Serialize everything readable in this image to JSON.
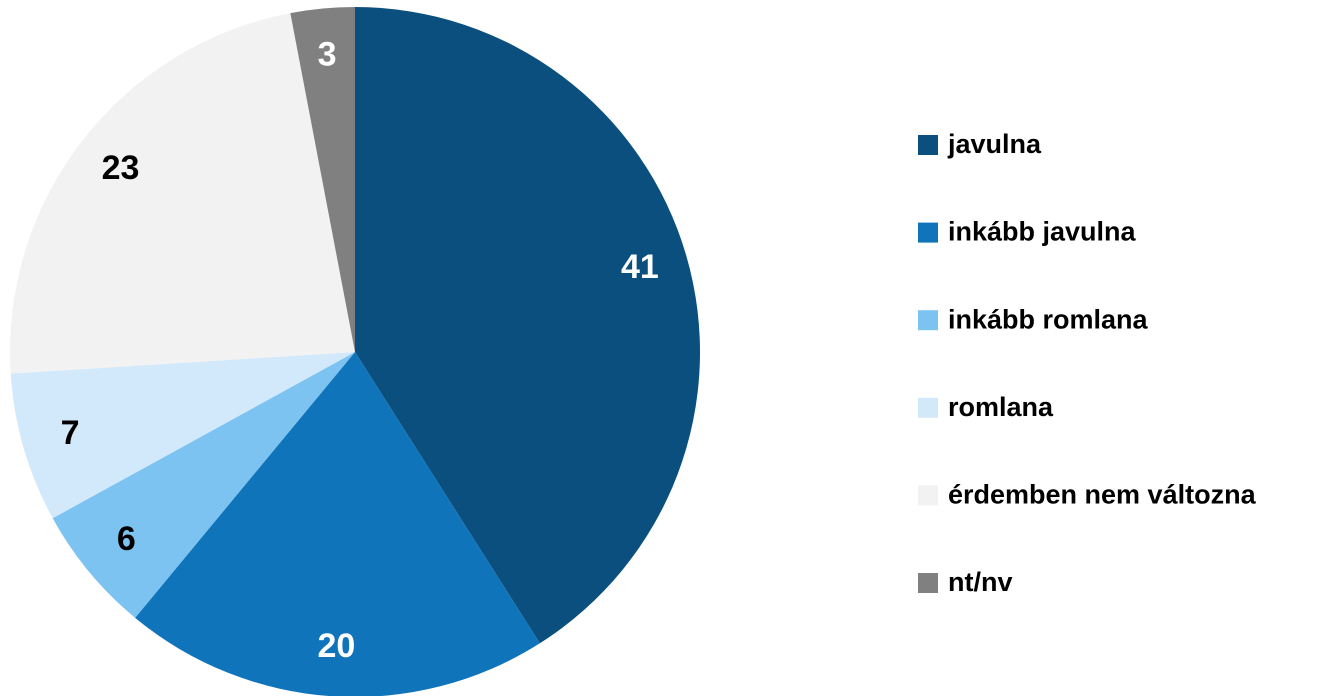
{
  "chart_data": {
    "type": "pie",
    "categories": [
      "javulna",
      "inkább javulna",
      "inkább romlana",
      "romlana",
      "érdemben nem változna",
      "nt/nv"
    ],
    "values": [
      41,
      20,
      6,
      7,
      23,
      3
    ],
    "colors": [
      "#0b4f7e",
      "#1074bb",
      "#7cc3f1",
      "#d2e9fb",
      "#f2f2f2",
      "#808080"
    ],
    "legend": "right"
  }
}
